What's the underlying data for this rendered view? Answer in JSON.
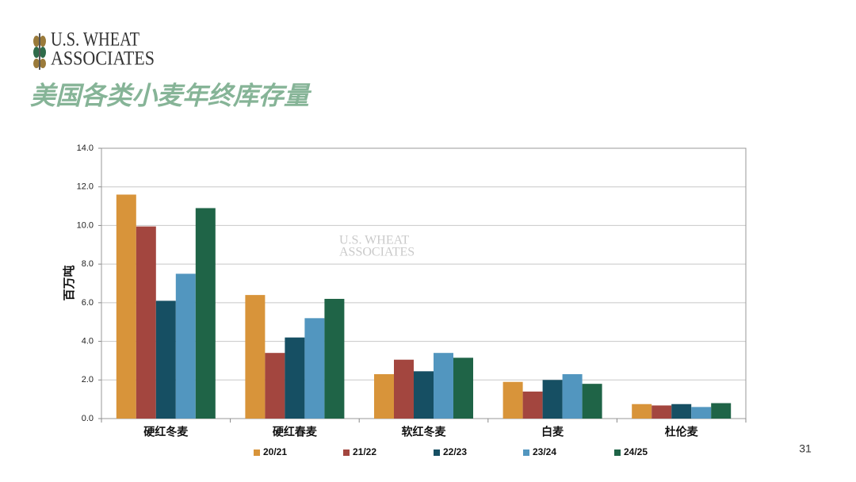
{
  "logo": {
    "line1": "U.S. WHEAT",
    "line2": "ASSOCIATES"
  },
  "title": "美国各类小麦年终库存量",
  "page_number": "31",
  "chart_data": {
    "type": "bar",
    "y_label": "百万吨",
    "categories": [
      "硬红冬麦",
      "硬红春麦",
      "软红冬麦",
      "白麦",
      "杜伦麦"
    ],
    "series": [
      {
        "name": "20/21",
        "color": "#d8943a",
        "values": [
          11.6,
          6.4,
          2.3,
          1.9,
          0.75
        ]
      },
      {
        "name": "21/22",
        "color": "#a3463f",
        "values": [
          9.95,
          3.4,
          3.05,
          1.4,
          0.68
        ]
      },
      {
        "name": "22/23",
        "color": "#164f63",
        "values": [
          6.1,
          4.2,
          2.45,
          2.0,
          0.75
        ]
      },
      {
        "name": "23/24",
        "color": "#5296bf",
        "values": [
          7.5,
          5.2,
          3.4,
          2.3,
          0.6
        ]
      },
      {
        "name": "24/25",
        "color": "#1f6447",
        "values": [
          10.9,
          6.2,
          3.15,
          1.8,
          0.8
        ]
      }
    ],
    "ylim": [
      0,
      14
    ],
    "yticks": [
      {
        "value": 0,
        "label": "0.0"
      },
      {
        "value": 2,
        "label": "2.0"
      },
      {
        "value": 4,
        "label": "4.0"
      },
      {
        "value": 6,
        "label": "6.0"
      },
      {
        "value": 8,
        "label": "8.0"
      },
      {
        "value": 10,
        "label": "10.0"
      },
      {
        "value": 12,
        "label": "12.0"
      },
      {
        "value": 14,
        "label": "14.0"
      }
    ],
    "grid": true,
    "legend": "bottom"
  }
}
